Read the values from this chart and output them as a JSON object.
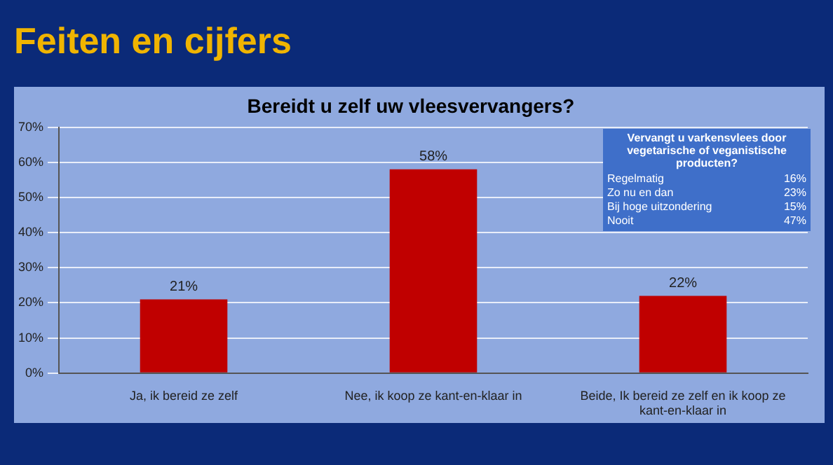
{
  "chart_data": {
    "type": "bar",
    "title": "Bereidt u zelf uw vleesvervangers?",
    "subtitle": "Feiten en cijfers",
    "categories": [
      "Ja, ik bereid ze zelf",
      "Nee, ik koop ze kant-en-klaar in",
      "Beide, Ik bereid ze zelf en ik koop ze kant-en-klaar in"
    ],
    "values": [
      21,
      58,
      22
    ],
    "color": "#c00000",
    "value_labels": [
      "21%",
      "58%",
      "22%"
    ],
    "ylim": [
      0,
      70
    ],
    "yticks": [
      {
        "value": 0,
        "label": "0%"
      },
      {
        "value": 10,
        "label": "10%"
      },
      {
        "value": 20,
        "label": "20%"
      },
      {
        "value": 30,
        "label": "30%"
      },
      {
        "value": 40,
        "label": "40%"
      },
      {
        "value": 50,
        "label": "50%"
      },
      {
        "value": 60,
        "label": "60%"
      },
      {
        "value": 70,
        "label": "70%"
      }
    ],
    "grid": "y",
    "legend": false,
    "annotations": [
      "Vervangt u varkensvlees door vegetarische of veganistische producten?",
      "Regelmatig 16%",
      "Zo nu en dan 23%",
      "Bij hoge uitzondering 15%",
      "Nooit 47%"
    ]
  }
}
